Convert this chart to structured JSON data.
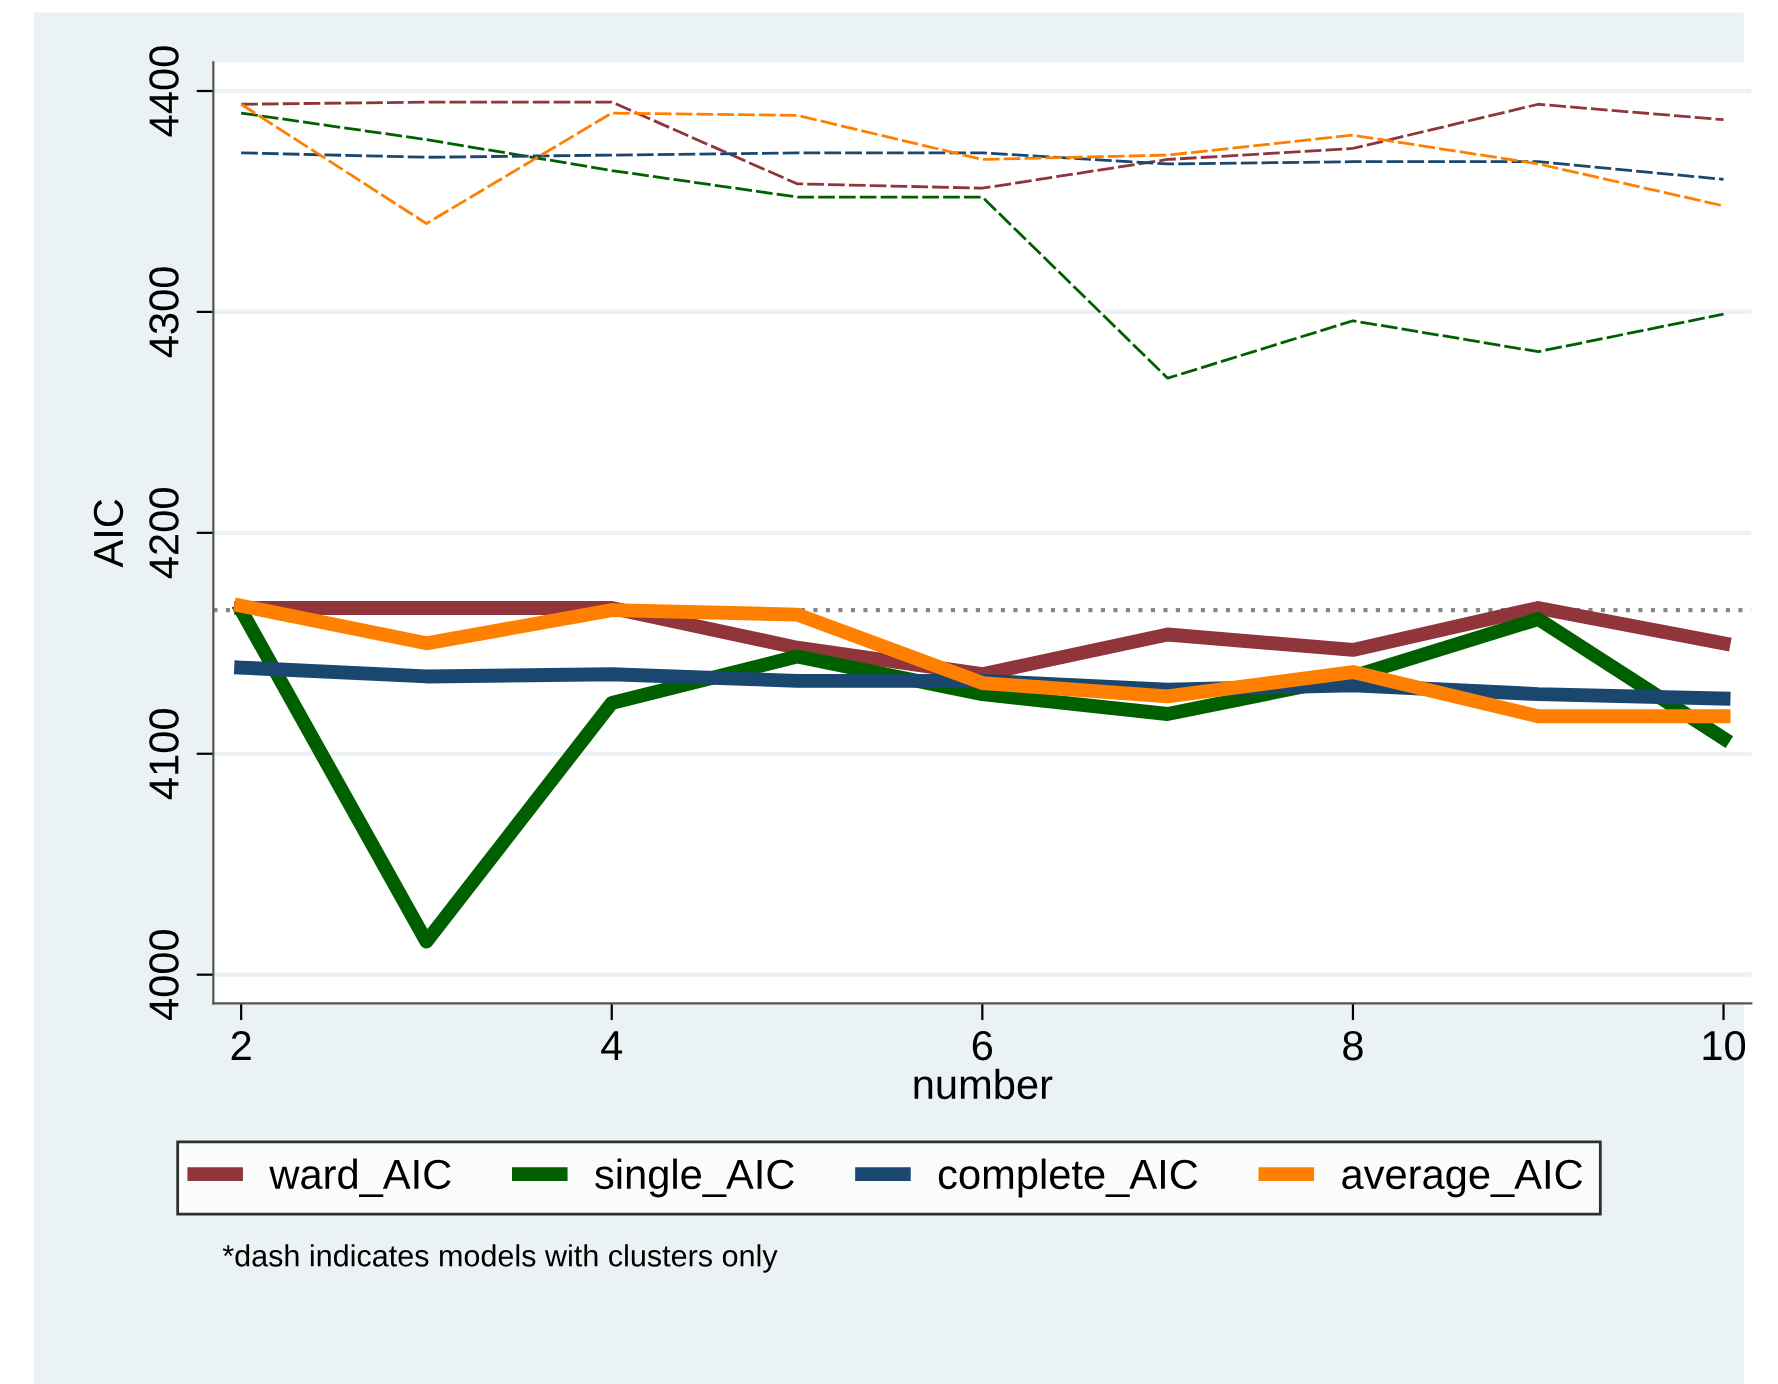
{
  "chart_data": {
    "type": "line",
    "xlabel": "number",
    "ylabel": "AIC",
    "x": [
      2,
      3,
      4,
      5,
      6,
      7,
      8,
      9,
      10
    ],
    "series": [
      {
        "color": "#90353b",
        "line_style": "dashed",
        "values": [
          4394,
          4395,
          4395,
          4358,
          4356,
          4369,
          4374,
          4394,
          4387
        ]
      },
      {
        "color": "#006000",
        "line_style": "dashed",
        "values": [
          4390,
          4378,
          4364,
          4352,
          4352,
          4270,
          4296,
          4282,
          4299
        ]
      },
      {
        "color": "#1a476f",
        "line_style": "dashed",
        "values": [
          4372,
          4370,
          4371,
          4372,
          4372,
          4367,
          4368,
          4368,
          4360
        ]
      },
      {
        "color": "#ff8000",
        "line_style": "dashed",
        "values": [
          4394,
          4340,
          4390,
          4389,
          4369,
          4371,
          4380,
          4367,
          4348
        ]
      },
      {
        "name": "ward_AIC",
        "color": "#90353b",
        "line_style": "solid",
        "values": [
          4166,
          4166,
          4166,
          4148,
          4136,
          4154,
          4147,
          4166,
          4150
        ]
      },
      {
        "name": "single_AIC",
        "color": "#006000",
        "line_style": "solid",
        "values": [
          4165,
          4015,
          4123,
          4144,
          4127,
          4118,
          4135,
          4161,
          4107
        ]
      },
      {
        "name": "complete_AIC",
        "color": "#1a476f",
        "line_style": "solid",
        "values": [
          4139,
          4135,
          4136,
          4133,
          4133,
          4129,
          4131,
          4127,
          4125
        ]
      },
      {
        "name": "average_AIC",
        "color": "#ff8000",
        "line_style": "solid",
        "values": [
          4167,
          4150,
          4165,
          4163,
          4132,
          4126,
          4137,
          4117,
          4117
        ]
      }
    ],
    "ref_lines": [
      {
        "axis": "y",
        "value": 4165,
        "label": null,
        "color": "#888888",
        "line_style": "dotted"
      }
    ],
    "xlim": [
      1.85,
      10.15
    ],
    "ylim": [
      3987,
      4413
    ],
    "xticks": [
      2,
      4,
      6,
      8,
      10
    ],
    "yticks": [
      4000,
      4100,
      4200,
      4300,
      4400
    ],
    "grid": "y",
    "legend": "bottom",
    "marker": "none",
    "annotations": [
      "*dash indicates models with clusters only"
    ]
  }
}
